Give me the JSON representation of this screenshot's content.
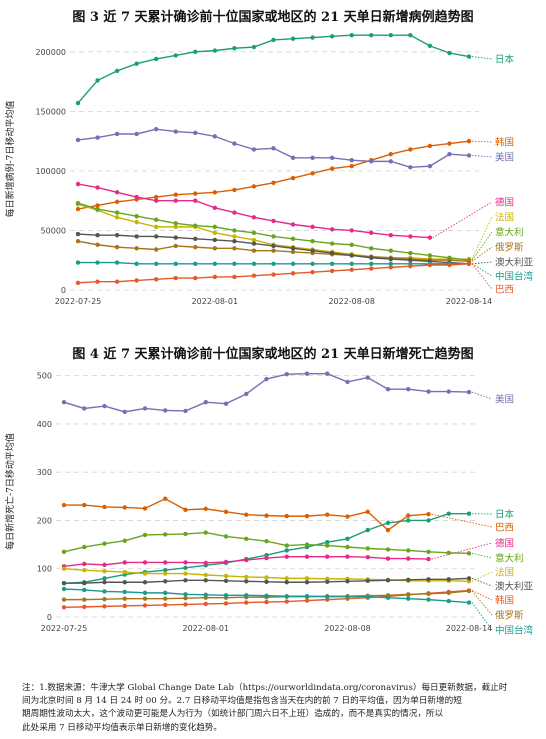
{
  "chart_data": [
    {
      "type": "line",
      "title": "图 3 近 7 天累计确诊前十位国家或地区的 21 天单日新增病例趋势图",
      "ylabel": "每日新增病例-7日移动平均值",
      "ylim": [
        0,
        220000
      ],
      "yticks": [
        0,
        50000,
        100000,
        150000,
        200000
      ],
      "ytick_labels": [
        "0",
        "50000",
        "100000",
        "150000",
        "200000"
      ],
      "xticks": [
        {
          "i": 0,
          "label": "2022-07-25"
        },
        {
          "i": 7,
          "label": "2022-08-01"
        },
        {
          "i": 14,
          "label": "2022-08-08"
        },
        {
          "i": 20,
          "label": "2022-08-14"
        }
      ],
      "grid": true,
      "x": [
        "2022-07-25",
        "2022-07-26",
        "2022-07-27",
        "2022-07-28",
        "2022-07-29",
        "2022-07-30",
        "2022-07-31",
        "2022-08-01",
        "2022-08-02",
        "2022-08-03",
        "2022-08-04",
        "2022-08-05",
        "2022-08-06",
        "2022-08-07",
        "2022-08-08",
        "2022-08-09",
        "2022-08-10",
        "2022-08-11",
        "2022-08-12",
        "2022-08-13",
        "2022-08-14"
      ],
      "series": [
        {
          "name": "日本",
          "color": "#1b9e77",
          "label_y": 196000,
          "values": [
            157000,
            176000,
            184000,
            190000,
            194000,
            197000,
            200000,
            201000,
            203000,
            204000,
            210000,
            211000,
            212000,
            213000,
            214000,
            214000,
            214000,
            214000,
            205000,
            199000,
            196000
          ]
        },
        {
          "name": "韩国",
          "color": "#d95f02",
          "label_y": 125000,
          "values": [
            68000,
            71000,
            74000,
            76000,
            78000,
            80000,
            81000,
            82000,
            84000,
            87000,
            90000,
            94000,
            98000,
            102000,
            104000,
            109000,
            114000,
            118000,
            121000,
            123000,
            125000
          ]
        },
        {
          "name": "美国",
          "color": "#7570b3",
          "label_y": 113000,
          "values": [
            126000,
            128000,
            131000,
            131000,
            135000,
            133000,
            132000,
            129000,
            123000,
            118000,
            119000,
            111000,
            111000,
            111000,
            109000,
            108000,
            108000,
            103000,
            104000,
            114000,
            113000
          ]
        },
        {
          "name": "德国",
          "color": "#e7298a",
          "label_y": 44000,
          "values": [
            89000,
            86000,
            82000,
            78000,
            75000,
            75000,
            75000,
            69000,
            65000,
            61000,
            58000,
            55000,
            53000,
            51000,
            50000,
            48000,
            46000,
            45000,
            44000,
            null,
            null
          ]
        },
        {
          "name": "法国",
          "color": "#c9b400",
          "label_y": 26000,
          "values": [
            72000,
            67000,
            61000,
            57000,
            53000,
            53000,
            53000,
            48000,
            45000,
            42000,
            38000,
            36000,
            34000,
            32000,
            30000,
            28000,
            27000,
            27000,
            26000,
            26000,
            26000
          ]
        },
        {
          "name": "意大利",
          "color": "#66a61e",
          "label_y": 25000,
          "values": [
            73000,
            68000,
            65000,
            62000,
            59000,
            56000,
            54000,
            53000,
            50000,
            48000,
            45000,
            43000,
            41000,
            39000,
            38000,
            35000,
            33000,
            31000,
            29000,
            27000,
            25000
          ]
        },
        {
          "name": "俄罗斯",
          "color": "#a6761d",
          "label_y": 24000,
          "values": [
            41000,
            38000,
            36000,
            35000,
            34000,
            37000,
            36000,
            35000,
            35000,
            33000,
            33000,
            32000,
            31000,
            30000,
            29000,
            28000,
            27000,
            26000,
            25000,
            25000,
            24000
          ]
        },
        {
          "name": "澳大利亚",
          "color": "#555555",
          "label_y": 22000,
          "values": [
            47000,
            46000,
            46000,
            45000,
            45000,
            44000,
            43000,
            42000,
            41000,
            39000,
            37000,
            35000,
            33000,
            31000,
            29000,
            27000,
            26000,
            25000,
            24000,
            23000,
            22000
          ]
        },
        {
          "name": "中国台湾",
          "color": "#1a9c8c",
          "label_y": 22000,
          "values": [
            23000,
            23000,
            23000,
            22000,
            22000,
            22000,
            22000,
            22000,
            22000,
            22000,
            22000,
            22000,
            22000,
            22000,
            22000,
            22000,
            22000,
            22000,
            22000,
            22000,
            22000
          ]
        },
        {
          "name": "巴西",
          "color": "#e5592b",
          "label_y": 22000,
          "values": [
            6000,
            7000,
            7000,
            8000,
            9000,
            10000,
            10000,
            11000,
            11000,
            12000,
            13000,
            14000,
            15000,
            16000,
            17000,
            18000,
            19000,
            20000,
            21000,
            21000,
            22000
          ]
        }
      ],
      "labels_order": [
        "日本",
        "韩国",
        "美国",
        "德国",
        "法国",
        "意大利",
        "俄罗斯",
        "澳大利亚",
        "中国台湾",
        "巴西"
      ]
    },
    {
      "type": "line",
      "title": "图 4 近 7 天累计确诊前十位国家或地区的 21 天单日新增死亡趋势图",
      "ylabel": "每日新增死亡-7日移动平均值",
      "ylim": [
        0,
        520
      ],
      "yticks": [
        0,
        100,
        200,
        300,
        400,
        500
      ],
      "ytick_labels": [
        "0",
        "100",
        "200",
        "300",
        "400",
        "500"
      ],
      "xticks": [
        {
          "i": 0,
          "label": "2022-07-25"
        },
        {
          "i": 7,
          "label": "2022-08-01"
        },
        {
          "i": 14,
          "label": "2022-08-08"
        },
        {
          "i": 20,
          "label": "2022-08-14"
        }
      ],
      "grid": true,
      "x": [
        "2022-07-25",
        "2022-07-26",
        "2022-07-27",
        "2022-07-28",
        "2022-07-29",
        "2022-07-30",
        "2022-07-31",
        "2022-08-01",
        "2022-08-02",
        "2022-08-03",
        "2022-08-04",
        "2022-08-05",
        "2022-08-06",
        "2022-08-07",
        "2022-08-08",
        "2022-08-09",
        "2022-08-10",
        "2022-08-11",
        "2022-08-12",
        "2022-08-13",
        "2022-08-14"
      ],
      "series": [
        {
          "name": "美国",
          "color": "#7570b3",
          "values": [
            445,
            432,
            437,
            425,
            432,
            428,
            427,
            445,
            442,
            462,
            493,
            503,
            504,
            504,
            487,
            496,
            472,
            472,
            467,
            467,
            466
          ]
        },
        {
          "name": "日本",
          "color": "#1b9e77",
          "values": [
            70,
            72,
            80,
            88,
            93,
            97,
            102,
            107,
            112,
            120,
            128,
            138,
            145,
            155,
            162,
            180,
            195,
            200,
            200,
            214,
            214
          ]
        },
        {
          "name": "巴西",
          "color": "#d95f02",
          "values": [
            232,
            232,
            228,
            227,
            225,
            245,
            222,
            224,
            218,
            212,
            210,
            209,
            209,
            212,
            208,
            218,
            180,
            210,
            213,
            null,
            null
          ]
        },
        {
          "name": "德国",
          "color": "#e7298a",
          "values": [
            105,
            110,
            108,
            113,
            113,
            113,
            113,
            112,
            114,
            118,
            122,
            125,
            125,
            125,
            125,
            124,
            121,
            121,
            120,
            null,
            null
          ]
        },
        {
          "name": "意大利",
          "color": "#66a61e",
          "values": [
            135,
            145,
            152,
            158,
            170,
            171,
            172,
            175,
            167,
            162,
            157,
            148,
            150,
            148,
            145,
            142,
            140,
            138,
            135,
            133,
            132
          ]
        },
        {
          "name": "法国",
          "color": "#c9b400",
          "values": [
            100,
            97,
            95,
            93,
            90,
            90,
            90,
            87,
            85,
            83,
            82,
            80,
            80,
            79,
            79,
            78,
            77,
            75,
            75,
            75,
            74
          ]
        },
        {
          "name": "澳大利亚",
          "color": "#555555",
          "values": [
            70,
            70,
            72,
            72,
            72,
            74,
            76,
            76,
            75,
            74,
            73,
            72,
            72,
            73,
            74,
            75,
            76,
            77,
            78,
            78,
            80
          ]
        },
        {
          "name": "韩国",
          "color": "#e5592b",
          "values": [
            20,
            21,
            22,
            23,
            24,
            25,
            26,
            27,
            28,
            30,
            31,
            32,
            34,
            36,
            38,
            40,
            43,
            46,
            49,
            52,
            55
          ]
        },
        {
          "name": "俄罗斯",
          "color": "#a6761d",
          "values": [
            36,
            36,
            37,
            38,
            38,
            38,
            39,
            40,
            40,
            41,
            41,
            42,
            42,
            43,
            43,
            44,
            45,
            47,
            48,
            50,
            54
          ]
        },
        {
          "name": "中国台湾",
          "color": "#1a9c8c",
          "values": [
            58,
            56,
            53,
            52,
            50,
            50,
            47,
            46,
            45,
            45,
            44,
            43,
            43,
            42,
            42,
            42,
            40,
            38,
            36,
            33,
            30
          ]
        }
      ],
      "labels_order": [
        "美国",
        "日本",
        "巴西",
        "德国",
        "意大利",
        "法国",
        "澳大利亚",
        "韩国",
        "俄罗斯",
        "中国台湾"
      ]
    }
  ],
  "note_lines": [
    "注：1.数据来源：牛津大学 Global Change Date Lab（https://ourworldindata.org/coronavirus）每日更新数据，截止时",
    "间为北京时间 8 月 14 日 24 时 00 分。2.7 日移动平均值是指包含当天在内的前 7 日的平均值，因为单日新增的短",
    "期周期性波动太大，这个波动更可能是人为行为（如统计部门周六日不上班）造成的，而不是真实的情况，所以",
    "此处采用 7 日移动平均值表示单日新增的变化趋势。"
  ]
}
